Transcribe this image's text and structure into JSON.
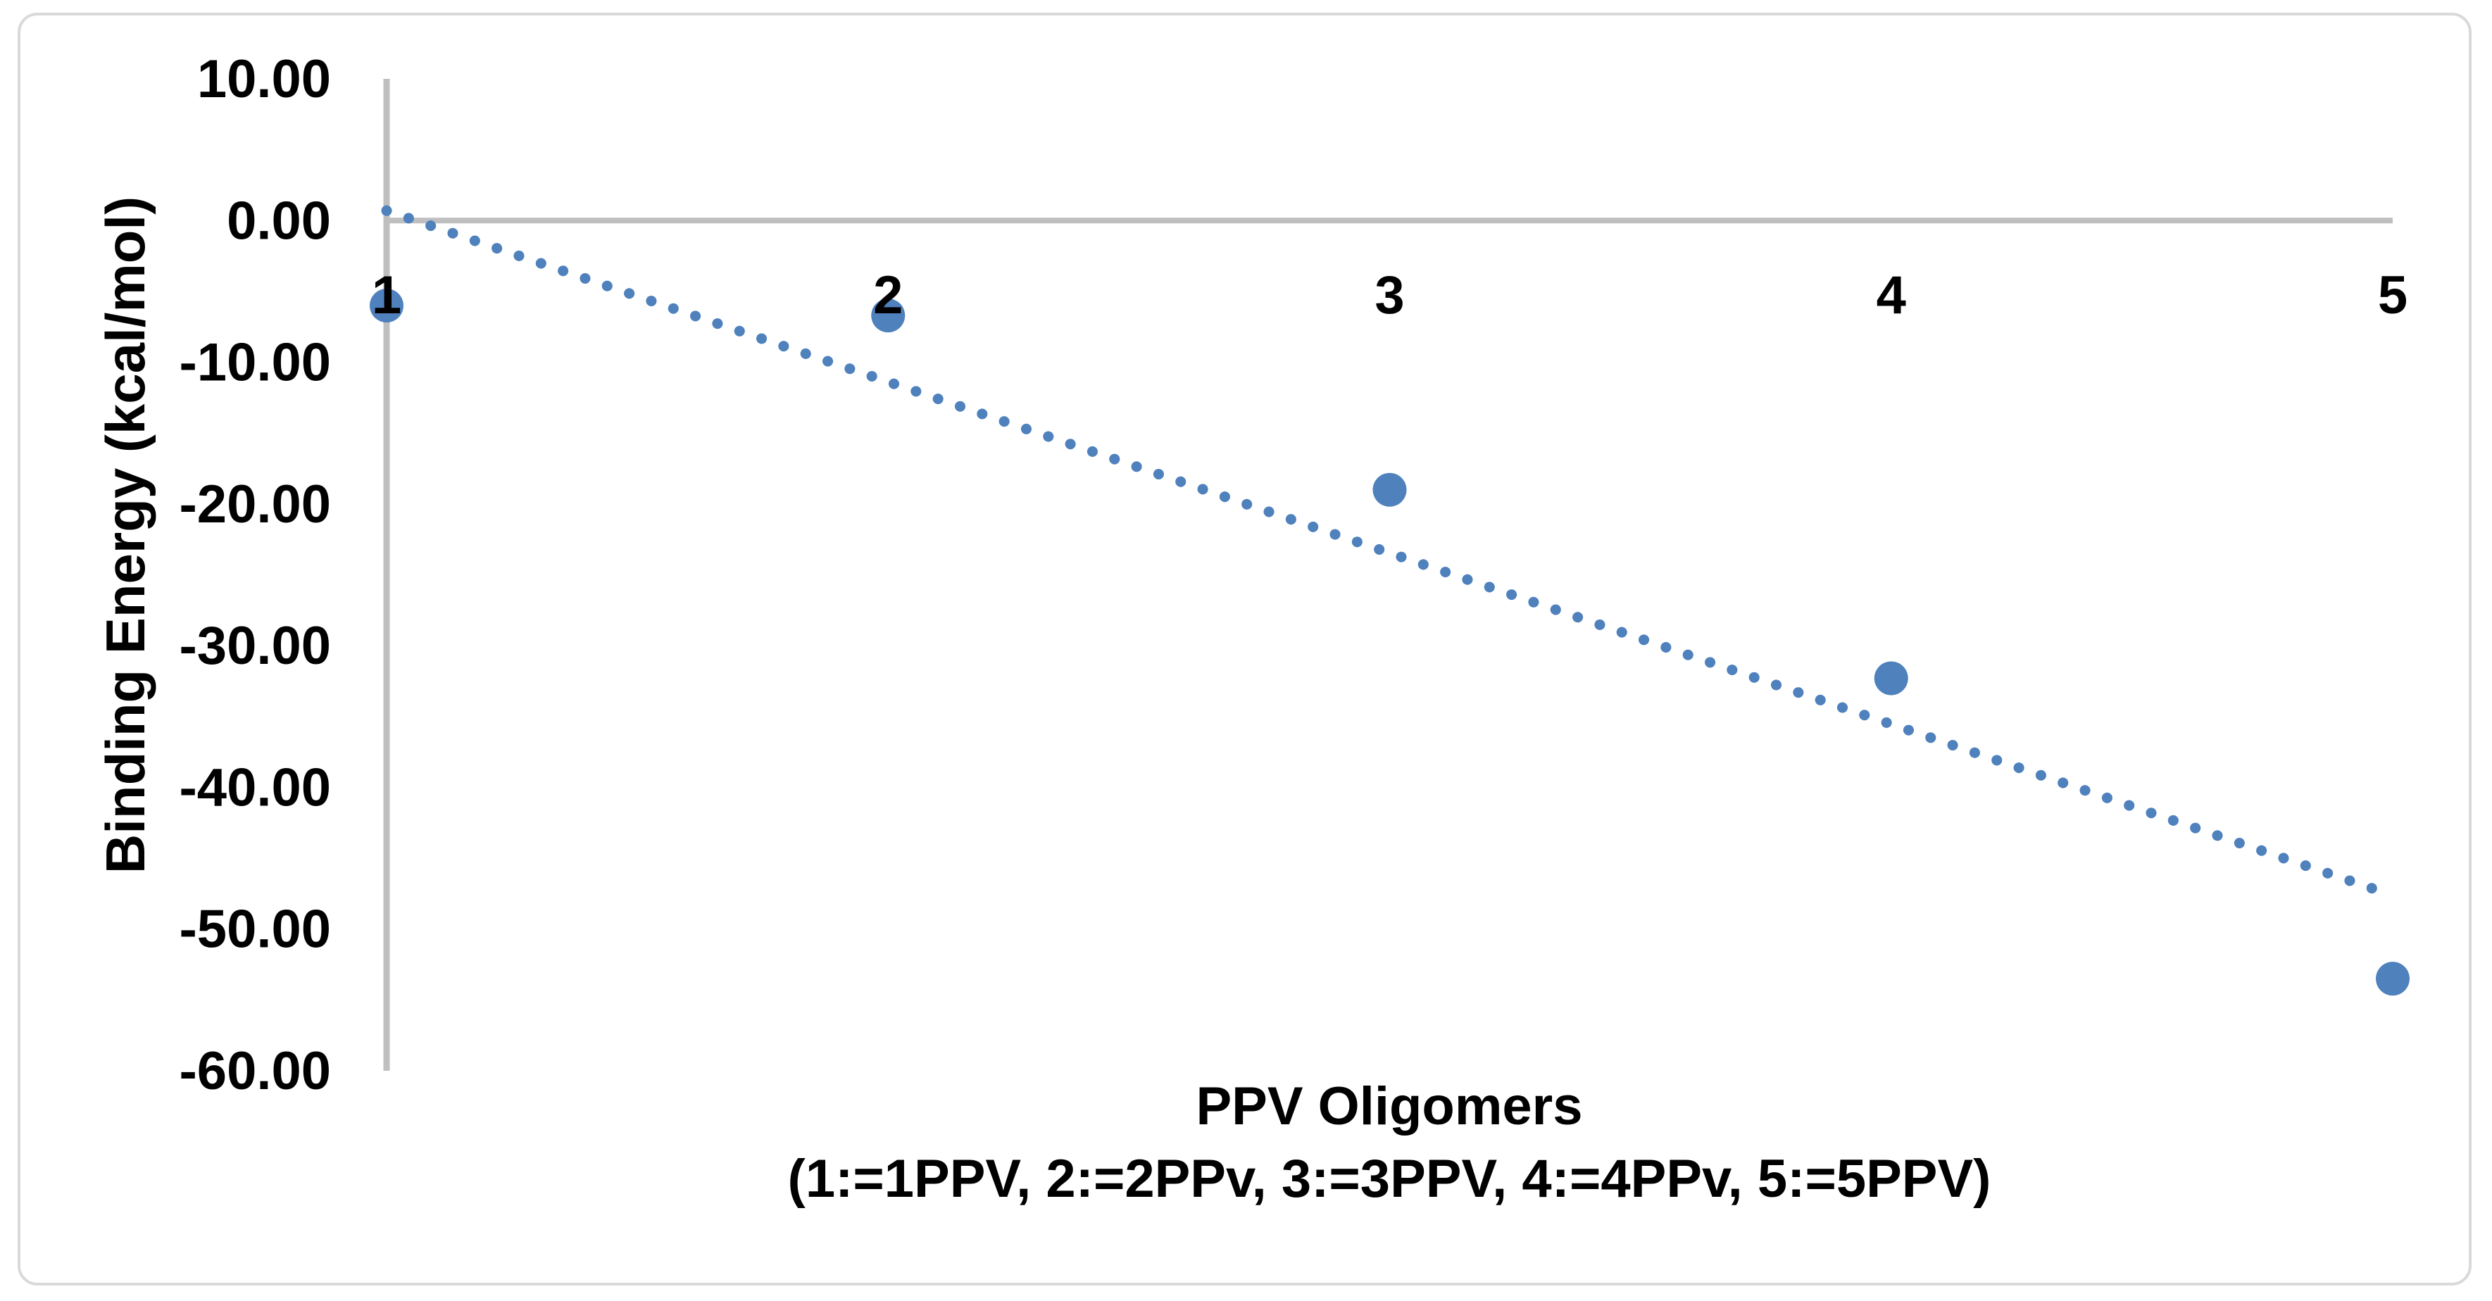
{
  "chart": {
    "background_color": "#FFFFFF",
    "border_color": "#D9D9D9"
  },
  "chart_data": {
    "type": "scatter",
    "title": "",
    "xlabel_line1": "PPV Oligomers",
    "xlabel_line2": "(1:=1PPV, 2:=2PPv, 3:=3PPV, 4:=4PPv, 5:=5PPV)",
    "ylabel": "Binding Energy (kcal/mol)",
    "series": [
      {
        "name": "Binding Energy",
        "x": [
          1,
          2,
          3,
          4,
          5
        ],
        "y": [
          -6.0,
          -6.7,
          -19.0,
          -32.3,
          -53.5
        ]
      }
    ],
    "trendline": {
      "style": "dotted",
      "x1": 1.0,
      "y1": 0.7,
      "x2": 4.99,
      "y2": -47.5
    },
    "xlim": [
      1,
      5
    ],
    "ylim": [
      -60,
      10
    ],
    "x_tick_values": [
      1,
      2,
      3,
      4,
      5
    ],
    "x_tick_labels": [
      "1",
      "2",
      "3",
      "4",
      "5"
    ],
    "y_tick_values": [
      10,
      0,
      -10,
      -20,
      -30,
      -40,
      -50,
      -60
    ],
    "y_tick_labels": [
      "10.00",
      "0.00",
      "-10.00",
      "-20.00",
      "-30.00",
      "-40.00",
      "-50.00",
      "-60.00"
    ],
    "grid": false,
    "legend": false,
    "point_color": "#4F81BD",
    "axis_color": "#BFBFBF",
    "text_color": "#000000"
  }
}
